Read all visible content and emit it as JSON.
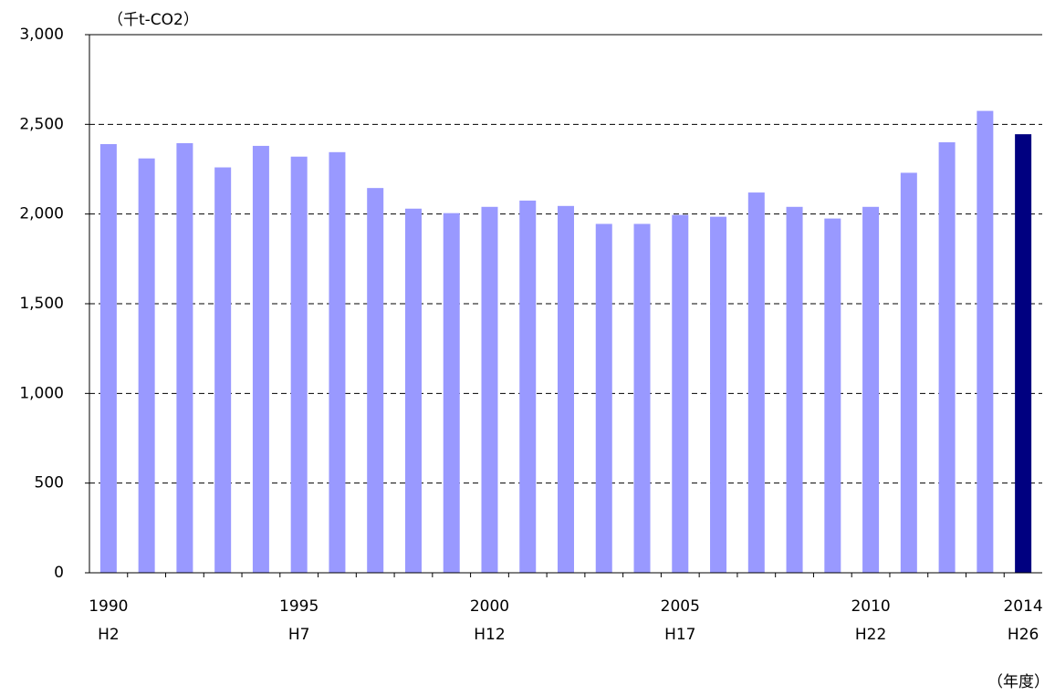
{
  "chart_data": {
    "type": "bar",
    "unit_label": "（千t-CO2）",
    "x_axis_label": "（年度）",
    "categories": [
      "1990",
      null,
      null,
      null,
      null,
      "1995",
      null,
      null,
      null,
      null,
      "2000",
      null,
      null,
      null,
      null,
      "2005",
      null,
      null,
      null,
      null,
      "2010",
      null,
      null,
      null,
      "2014"
    ],
    "categories_sub": [
      "H2",
      null,
      null,
      null,
      null,
      "H7",
      null,
      null,
      null,
      null,
      "H12",
      null,
      null,
      null,
      null,
      "H17",
      null,
      null,
      null,
      null,
      "H22",
      null,
      null,
      null,
      "H26"
    ],
    "values": [
      2390,
      2310,
      2395,
      2260,
      2380,
      2320,
      2345,
      2145,
      2030,
      2005,
      2040,
      2075,
      2045,
      1945,
      1945,
      1995,
      1985,
      2120,
      2040,
      1975,
      2040,
      2230,
      2400,
      2575,
      2445
    ],
    "colors": [
      "#9999ff",
      "#9999ff",
      "#9999ff",
      "#9999ff",
      "#9999ff",
      "#9999ff",
      "#9999ff",
      "#9999ff",
      "#9999ff",
      "#9999ff",
      "#9999ff",
      "#9999ff",
      "#9999ff",
      "#9999ff",
      "#9999ff",
      "#9999ff",
      "#9999ff",
      "#9999ff",
      "#9999ff",
      "#9999ff",
      "#9999ff",
      "#9999ff",
      "#9999ff",
      "#9999ff",
      "#000080"
    ],
    "ylim": [
      0,
      3000
    ],
    "yticks": [
      0,
      {
        "value": 500,
        "label": "500"
      },
      {
        "value": 1000,
        "label": "1,000"
      },
      {
        "value": 1500,
        "label": "1,500"
      },
      {
        "value": 2000,
        "label": "2,000"
      },
      {
        "value": 2500,
        "label": "2,500"
      },
      {
        "value": 3000,
        "label": "3,000"
      }
    ],
    "grid": true
  }
}
